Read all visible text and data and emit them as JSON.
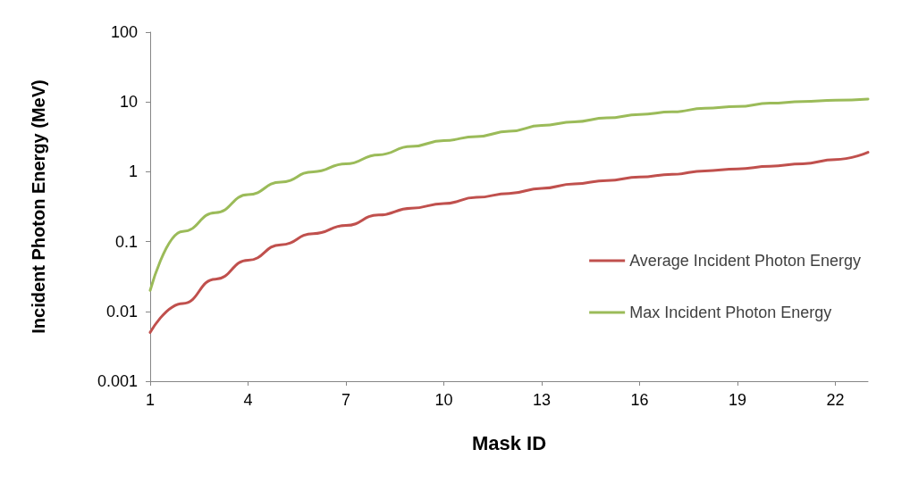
{
  "chart_data": {
    "type": "line",
    "xlabel": "Mask ID",
    "ylabel": "Incident Photon Energy (MeV)",
    "x": [
      1,
      2,
      3,
      4,
      5,
      6,
      7,
      8,
      9,
      10,
      11,
      12,
      13,
      14,
      15,
      16,
      17,
      18,
      19,
      20,
      21,
      22,
      23
    ],
    "series": [
      {
        "name": "Average Incident Photon Energy",
        "color": "#c0504d",
        "values": [
          0.005,
          0.013,
          0.029,
          0.054,
          0.09,
          0.13,
          0.17,
          0.24,
          0.3,
          0.35,
          0.43,
          0.49,
          0.58,
          0.67,
          0.75,
          0.84,
          0.92,
          1.03,
          1.1,
          1.2,
          1.3,
          1.5,
          1.9
        ]
      },
      {
        "name": "Max Incident Photon Energy",
        "color": "#9bbb59",
        "values": [
          0.02,
          0.14,
          0.26,
          0.47,
          0.71,
          1.0,
          1.3,
          1.75,
          2.3,
          2.8,
          3.2,
          3.8,
          4.6,
          5.2,
          5.9,
          6.6,
          7.2,
          8.1,
          8.6,
          9.6,
          10.1,
          10.6,
          11
        ]
      }
    ],
    "xlim": [
      1,
      23
    ],
    "xticks": [
      1,
      4,
      7,
      10,
      13,
      16,
      19,
      22
    ],
    "ylim": [
      0.001,
      100
    ],
    "yticks": [
      0.001,
      0.01,
      0.1,
      1,
      10,
      100
    ],
    "log": "y",
    "grid": false,
    "legend": "right",
    "marker": "none",
    "line_style": "solid"
  }
}
